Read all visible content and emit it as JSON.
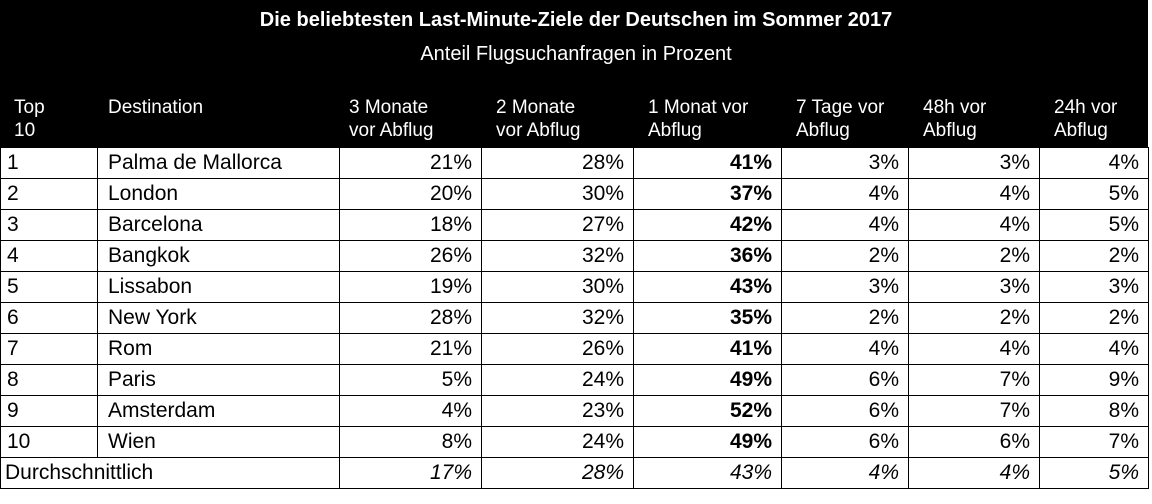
{
  "chart_data": {
    "type": "table",
    "title": "Die beliebtesten Last-Minute-Ziele der Deutschen im Sommer 2017",
    "subtitle": "Anteil Flugsuchanfragen in Prozent",
    "columns": [
      "Top\n10",
      "Destination",
      "3 Monate\nvor Abflug",
      "2 Monate\nvor Abflug",
      "1 Monat vor\nAbflug",
      "7 Tage vor\nAbflug",
      "48h vor\nAbflug",
      "24h vor\nAbflug"
    ],
    "rows": [
      {
        "rank": "1",
        "destination": "Palma de Mallorca",
        "values": [
          "21%",
          "28%",
          "41%",
          "3%",
          "3%",
          "4%"
        ]
      },
      {
        "rank": "2",
        "destination": "London",
        "values": [
          "20%",
          "30%",
          "37%",
          "4%",
          "4%",
          "5%"
        ]
      },
      {
        "rank": "3",
        "destination": "Barcelona",
        "values": [
          "18%",
          "27%",
          "42%",
          "4%",
          "4%",
          "5%"
        ]
      },
      {
        "rank": "4",
        "destination": "Bangkok",
        "values": [
          "26%",
          "32%",
          "36%",
          "2%",
          "2%",
          "2%"
        ]
      },
      {
        "rank": "5",
        "destination": "Lissabon",
        "values": [
          "19%",
          "30%",
          "43%",
          "3%",
          "3%",
          "3%"
        ]
      },
      {
        "rank": "6",
        "destination": "New York",
        "values": [
          "28%",
          "32%",
          "35%",
          "2%",
          "2%",
          "2%"
        ]
      },
      {
        "rank": "7",
        "destination": "Rom",
        "values": [
          "21%",
          "26%",
          "41%",
          "4%",
          "4%",
          "4%"
        ]
      },
      {
        "rank": "8",
        "destination": "Paris",
        "values": [
          "5%",
          "24%",
          "49%",
          "6%",
          "7%",
          "9%"
        ]
      },
      {
        "rank": "9",
        "destination": "Amsterdam",
        "values": [
          "4%",
          "23%",
          "52%",
          "6%",
          "7%",
          "8%"
        ]
      },
      {
        "rank": "10",
        "destination": "Wien",
        "values": [
          "8%",
          "24%",
          "49%",
          "6%",
          "6%",
          "7%"
        ]
      }
    ],
    "average": {
      "label": "Durchschnittlich",
      "values": [
        "17%",
        "28%",
        "43%",
        "4%",
        "4%",
        "5%"
      ]
    },
    "highlighted_column": "1 Monat vor\nAbflug",
    "colors": {
      "header_bg": "#000000",
      "header_text": "#ffffff",
      "body_text": "#000000"
    }
  }
}
